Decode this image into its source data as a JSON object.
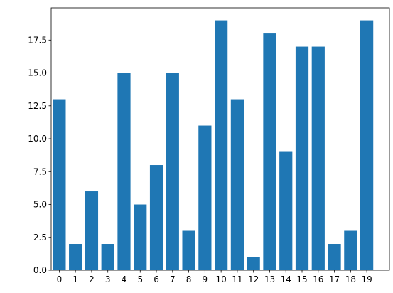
{
  "chart_data": {
    "type": "bar",
    "x": [
      0,
      1,
      2,
      3,
      4,
      5,
      6,
      7,
      8,
      9,
      10,
      11,
      12,
      13,
      14,
      15,
      16,
      17,
      18,
      19
    ],
    "values": [
      13,
      2,
      6,
      2,
      15,
      5,
      8,
      15,
      3,
      11,
      19,
      13,
      1,
      18,
      9,
      17,
      17,
      2,
      3,
      19
    ],
    "color": "#1f77b4",
    "xlim": [
      -0.5,
      20.4
    ],
    "xticks": [
      0,
      1,
      2,
      3,
      4,
      5,
      6,
      7,
      8,
      9,
      10,
      11,
      12,
      13,
      14,
      15,
      16,
      17,
      18,
      19
    ],
    "ylim": [
      0,
      19.95
    ],
    "yticks": [
      {
        "value": 0,
        "label": "0.0"
      },
      {
        "value": 2.5,
        "label": "2.5"
      },
      {
        "value": 5,
        "label": "5.0"
      },
      {
        "value": 7.5,
        "label": "7.5"
      },
      {
        "value": 10,
        "label": "10.0"
      },
      {
        "value": 12.5,
        "label": "12.5"
      },
      {
        "value": 15,
        "label": "15.0"
      },
      {
        "value": 17.5,
        "label": "17.5"
      }
    ],
    "grid": false
  }
}
